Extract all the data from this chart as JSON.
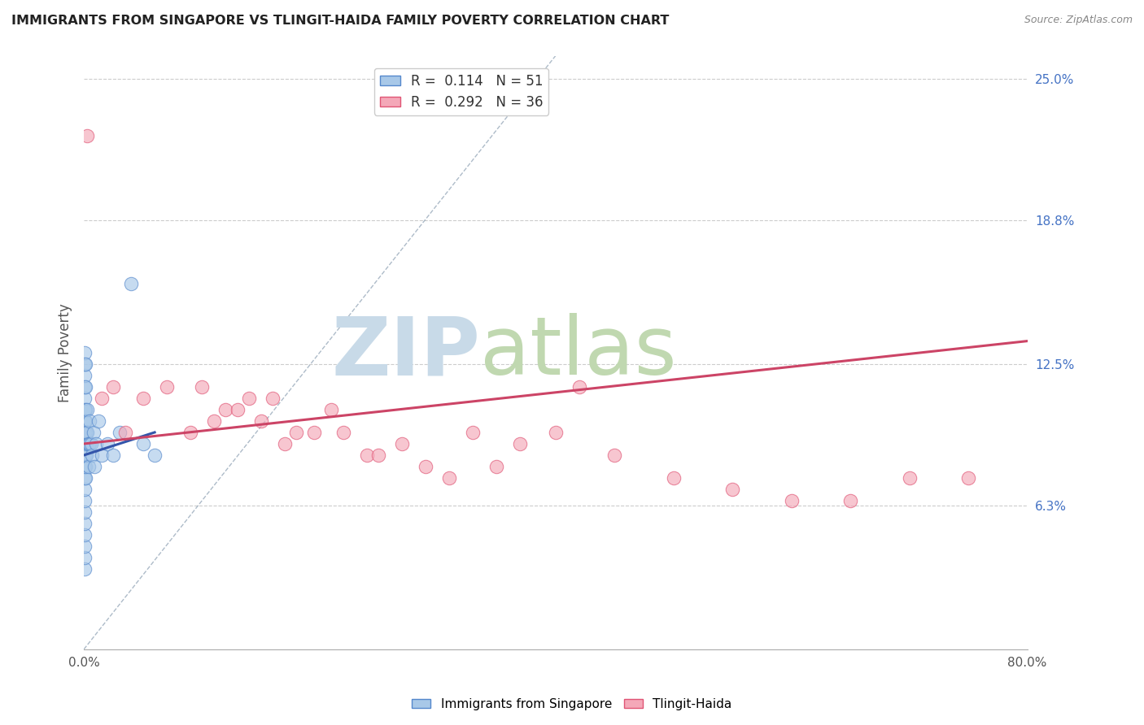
{
  "title": "IMMIGRANTS FROM SINGAPORE VS TLINGIT-HAIDA FAMILY POVERTY CORRELATION CHART",
  "source": "Source: ZipAtlas.com",
  "ylabel": "Family Poverty",
  "right_yticks": [
    6.3,
    12.5,
    18.8,
    25.0
  ],
  "right_ytick_labels": [
    "6.3%",
    "12.5%",
    "18.8%",
    "25.0%"
  ],
  "legend_r_values": [
    "0.114",
    "0.292"
  ],
  "legend_n_values": [
    "51",
    "36"
  ],
  "blue_color": "#a8c8e8",
  "pink_color": "#f4a8b8",
  "blue_edge": "#5588cc",
  "pink_edge": "#e05575",
  "trend_blue_color": "#3355aa",
  "trend_pink_color": "#cc4466",
  "diagonal_color": "#99aabb",
  "xmin": 0.0,
  "xmax": 80.0,
  "ymin": 0.0,
  "ymax": 26.0,
  "blue_x": [
    0.05,
    0.05,
    0.05,
    0.05,
    0.05,
    0.05,
    0.05,
    0.05,
    0.05,
    0.05,
    0.05,
    0.05,
    0.05,
    0.05,
    0.05,
    0.05,
    0.05,
    0.05,
    0.05,
    0.05,
    0.1,
    0.1,
    0.1,
    0.1,
    0.1,
    0.1,
    0.15,
    0.15,
    0.15,
    0.2,
    0.2,
    0.25,
    0.3,
    0.3,
    0.4,
    0.4,
    0.5,
    0.5,
    0.6,
    0.7,
    0.8,
    0.9,
    1.0,
    1.2,
    1.5,
    2.0,
    2.5,
    3.0,
    4.0,
    5.0,
    6.0
  ],
  "blue_y": [
    3.5,
    4.0,
    4.5,
    5.0,
    5.5,
    6.0,
    6.5,
    7.0,
    7.5,
    8.0,
    8.5,
    9.0,
    9.5,
    10.0,
    10.5,
    11.0,
    11.5,
    12.0,
    12.5,
    13.0,
    7.5,
    8.5,
    9.5,
    10.5,
    11.5,
    12.5,
    8.0,
    9.0,
    10.0,
    8.5,
    9.5,
    9.0,
    9.5,
    10.5,
    8.0,
    9.0,
    9.0,
    10.0,
    9.0,
    8.5,
    9.5,
    8.0,
    9.0,
    10.0,
    8.5,
    9.0,
    8.5,
    9.5,
    16.0,
    9.0,
    8.5
  ],
  "pink_x": [
    0.3,
    1.5,
    2.5,
    3.5,
    5.0,
    7.0,
    9.0,
    10.0,
    11.0,
    12.0,
    13.0,
    14.0,
    15.0,
    16.0,
    17.0,
    18.0,
    19.5,
    21.0,
    22.0,
    24.0,
    25.0,
    27.0,
    29.0,
    31.0,
    33.0,
    35.0,
    37.0,
    40.0,
    42.0,
    45.0,
    50.0,
    55.0,
    60.0,
    65.0,
    70.0,
    75.0
  ],
  "pink_y": [
    22.5,
    11.0,
    11.5,
    9.5,
    11.0,
    11.5,
    9.5,
    11.5,
    10.0,
    10.5,
    10.5,
    11.0,
    10.0,
    11.0,
    9.0,
    9.5,
    9.5,
    10.5,
    9.5,
    8.5,
    8.5,
    9.0,
    8.0,
    7.5,
    9.5,
    8.0,
    9.0,
    9.5,
    11.5,
    8.5,
    7.5,
    7.0,
    6.5,
    6.5,
    7.5,
    7.5
  ],
  "blue_trend_x0": 0.0,
  "blue_trend_y0": 8.5,
  "blue_trend_x1": 6.0,
  "blue_trend_y1": 9.5,
  "pink_trend_x0": 0.0,
  "pink_trend_y0": 9.0,
  "pink_trend_x1": 80.0,
  "pink_trend_y1": 13.5,
  "diag_x0": 0.0,
  "diag_y0": 0.0,
  "diag_x1": 40.0,
  "diag_y1": 26.0,
  "grid_color": "#cccccc",
  "watermark_zip": "ZIP",
  "watermark_atlas": "atlas",
  "watermark_color_zip": "#c8dae8",
  "watermark_color_atlas": "#c0d8b0",
  "figsize": [
    14.06,
    8.92
  ],
  "dpi": 100
}
